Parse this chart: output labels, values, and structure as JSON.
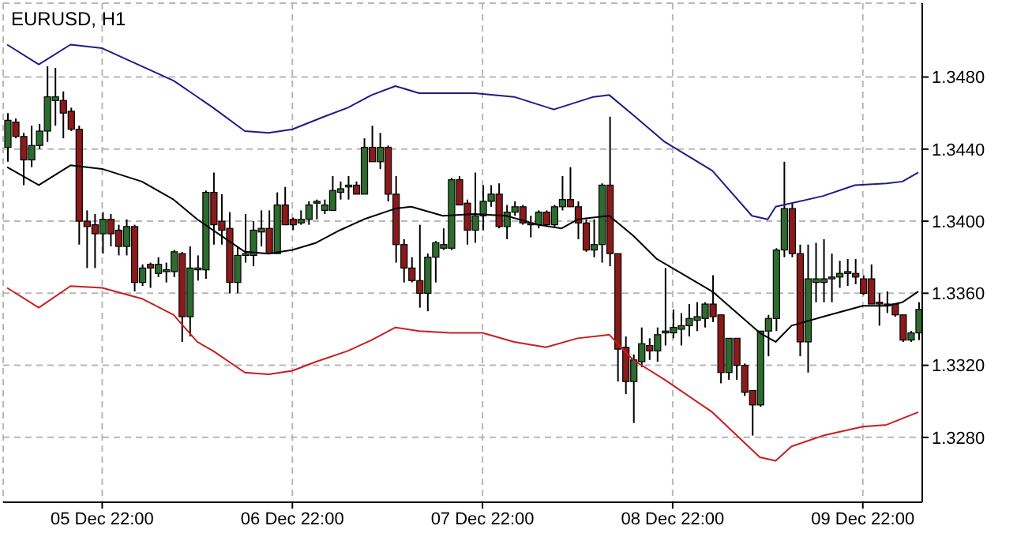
{
  "chart_data": {
    "type": "candlestick",
    "title": "EURUSD, H1",
    "categories": [
      null,
      null,
      null,
      null,
      null,
      null,
      null,
      null,
      null,
      null,
      null,
      null,
      "05 Dec 22:00",
      null,
      null,
      null,
      null,
      null,
      null,
      null,
      null,
      null,
      null,
      null,
      null,
      null,
      null,
      null,
      null,
      null,
      null,
      null,
      null,
      null,
      null,
      null,
      "06 Dec 22:00",
      null,
      null,
      null,
      null,
      null,
      null,
      null,
      null,
      null,
      null,
      null,
      null,
      null,
      null,
      null,
      null,
      null,
      null,
      null,
      null,
      null,
      null,
      null,
      "07 Dec 22:00",
      null,
      null,
      null,
      null,
      null,
      null,
      null,
      null,
      null,
      null,
      null,
      null,
      null,
      null,
      null,
      null,
      null,
      null,
      null,
      null,
      null,
      null,
      null,
      "08 Dec 22:00",
      null,
      null,
      null,
      null,
      null,
      null,
      null,
      null,
      null,
      null,
      null,
      null,
      null,
      null,
      null,
      null,
      null,
      null,
      null,
      null,
      null,
      null,
      null,
      "09 Dec 22:00",
      null,
      null,
      null,
      null,
      null,
      null,
      null
    ],
    "ohlc": [
      [
        1.3441,
        1.346,
        1.3433,
        1.3456
      ],
      [
        1.3455,
        1.3457,
        1.3446,
        1.3447
      ],
      [
        1.3447,
        1.3449,
        1.342,
        1.3434
      ],
      [
        1.3434,
        1.3453,
        1.343,
        1.3442
      ],
      [
        1.3442,
        1.3454,
        1.344,
        1.345
      ],
      [
        1.345,
        1.3486,
        1.3444,
        1.3469
      ],
      [
        1.3467,
        1.3485,
        1.3453,
        1.3469
      ],
      [
        1.3467,
        1.3472,
        1.3446,
        1.346
      ],
      [
        1.3461,
        1.3463,
        1.345,
        1.3451
      ],
      [
        1.3451,
        1.3453,
        1.3387,
        1.34
      ],
      [
        1.34,
        1.3406,
        1.3374,
        1.3397
      ],
      [
        1.3398,
        1.3404,
        1.3374,
        1.3393
      ],
      [
        1.3393,
        1.3405,
        1.3382,
        1.3401
      ],
      [
        1.3401,
        1.3404,
        1.3386,
        1.3393
      ],
      [
        1.3395,
        1.3398,
        1.3381,
        1.3386
      ],
      [
        1.3386,
        1.3401,
        1.3381,
        1.3397
      ],
      [
        1.3397,
        1.3398,
        1.3361,
        1.3366
      ],
      [
        1.3366,
        1.3376,
        1.3364,
        1.3374
      ],
      [
        1.3376,
        1.3377,
        1.3363,
        1.3374
      ],
      [
        1.3371,
        1.338,
        1.3369,
        1.3376
      ],
      [
        1.3372,
        1.3377,
        1.3366,
        1.3373
      ],
      [
        1.3372,
        1.3384,
        1.3369,
        1.3383
      ],
      [
        1.3382,
        1.3383,
        1.3333,
        1.3347
      ],
      [
        1.3347,
        1.3386,
        1.3336,
        1.3374
      ],
      [
        1.3373,
        1.3381,
        1.3367,
        1.3374
      ],
      [
        1.3373,
        1.3417,
        1.3368,
        1.3416
      ],
      [
        1.3416,
        1.3427,
        1.3387,
        1.3398
      ],
      [
        1.34,
        1.3415,
        1.3387,
        1.3395
      ],
      [
        1.3396,
        1.3405,
        1.336,
        1.3366
      ],
      [
        1.3366,
        1.3386,
        1.336,
        1.3381
      ],
      [
        1.3381,
        1.3404,
        1.3377,
        1.3382
      ],
      [
        1.3381,
        1.34,
        1.3375,
        1.3395
      ],
      [
        1.3394,
        1.3406,
        1.3386,
        1.3396
      ],
      [
        1.3396,
        1.3406,
        1.3382,
        1.3382
      ],
      [
        1.3382,
        1.3416,
        1.3382,
        1.3409
      ],
      [
        1.3409,
        1.3419,
        1.3398,
        1.3398
      ],
      [
        1.3401,
        1.3402,
        1.3395,
        1.3398
      ],
      [
        1.3399,
        1.3406,
        1.3398,
        1.3401
      ],
      [
        1.3401,
        1.3411,
        1.3398,
        1.3409
      ],
      [
        1.341,
        1.3412,
        1.3401,
        1.3411
      ],
      [
        1.3406,
        1.3412,
        1.3404,
        1.3409
      ],
      [
        1.3406,
        1.3425,
        1.3406,
        1.3417
      ],
      [
        1.3416,
        1.3422,
        1.3412,
        1.3418
      ],
      [
        1.3419,
        1.3425,
        1.3412,
        1.342
      ],
      [
        1.342,
        1.3422,
        1.3415,
        1.3415
      ],
      [
        1.3415,
        1.3446,
        1.3415,
        1.3441
      ],
      [
        1.3441,
        1.3453,
        1.3433,
        1.3433
      ],
      [
        1.3433,
        1.3449,
        1.3429,
        1.3441
      ],
      [
        1.3441,
        1.3442,
        1.3411,
        1.3415
      ],
      [
        1.3415,
        1.3425,
        1.3377,
        1.3387
      ],
      [
        1.3387,
        1.339,
        1.3366,
        1.3374
      ],
      [
        1.3374,
        1.338,
        1.3366,
        1.3367
      ],
      [
        1.3367,
        1.3398,
        1.3352,
        1.336
      ],
      [
        1.336,
        1.3382,
        1.335,
        1.338
      ],
      [
        1.338,
        1.3389,
        1.3366,
        1.3388
      ],
      [
        1.3385,
        1.3396,
        1.3384,
        1.3387
      ],
      [
        1.3385,
        1.3424,
        1.3384,
        1.3423
      ],
      [
        1.3423,
        1.3425,
        1.3409,
        1.3409
      ],
      [
        1.341,
        1.3412,
        1.3387,
        1.3395
      ],
      [
        1.3395,
        1.3427,
        1.3388,
        1.3403
      ],
      [
        1.3403,
        1.342,
        1.3395,
        1.3411
      ],
      [
        1.3411,
        1.342,
        1.3408,
        1.3415
      ],
      [
        1.3415,
        1.3421,
        1.3396,
        1.3397
      ],
      [
        1.3397,
        1.3409,
        1.339,
        1.3405
      ],
      [
        1.3405,
        1.3411,
        1.3403,
        1.3408
      ],
      [
        1.3408,
        1.3409,
        1.3398,
        1.3399
      ],
      [
        1.3399,
        1.3403,
        1.3391,
        1.3398
      ],
      [
        1.3398,
        1.3406,
        1.3396,
        1.3405
      ],
      [
        1.3405,
        1.3406,
        1.3397,
        1.3398
      ],
      [
        1.3398,
        1.3409,
        1.3397,
        1.3408
      ],
      [
        1.3408,
        1.3425,
        1.3406,
        1.3412
      ],
      [
        1.3412,
        1.343,
        1.3408,
        1.3408
      ],
      [
        1.3408,
        1.3411,
        1.339,
        1.3399
      ],
      [
        1.3399,
        1.3401,
        1.3383,
        1.3384
      ],
      [
        1.3384,
        1.3401,
        1.338,
        1.3387
      ],
      [
        1.3387,
        1.3421,
        1.3377,
        1.342
      ],
      [
        1.342,
        1.3458,
        1.3375,
        1.3382
      ],
      [
        1.3382,
        1.3382,
        1.3311,
        1.3329
      ],
      [
        1.333,
        1.3336,
        1.3304,
        1.3311
      ],
      [
        1.3311,
        1.3326,
        1.3288,
        1.3323
      ],
      [
        1.3322,
        1.3341,
        1.3319,
        1.3332
      ],
      [
        1.3331,
        1.3335,
        1.3323,
        1.3328
      ],
      [
        1.3328,
        1.3341,
        1.3322,
        1.3337
      ],
      [
        1.3338,
        1.3374,
        1.3331,
        1.3339
      ],
      [
        1.3338,
        1.3351,
        1.3335,
        1.3341
      ],
      [
        1.334,
        1.3349,
        1.3331,
        1.3342
      ],
      [
        1.3342,
        1.3354,
        1.3336,
        1.3346
      ],
      [
        1.3345,
        1.3355,
        1.3339,
        1.3347
      ],
      [
        1.3346,
        1.3355,
        1.3341,
        1.3354
      ],
      [
        1.3354,
        1.337,
        1.3344,
        1.3347
      ],
      [
        1.3348,
        1.3348,
        1.331,
        1.3316
      ],
      [
        1.3316,
        1.3335,
        1.3312,
        1.3335
      ],
      [
        1.3335,
        1.3335,
        1.3312,
        1.332
      ],
      [
        1.332,
        1.3321,
        1.3303,
        1.3305
      ],
      [
        1.3306,
        1.3306,
        1.3281,
        1.3298
      ],
      [
        1.3298,
        1.3339,
        1.3297,
        1.3339
      ],
      [
        1.3339,
        1.3348,
        1.3325,
        1.3346
      ],
      [
        1.3346,
        1.3385,
        1.3339,
        1.3384
      ],
      [
        1.3384,
        1.3433,
        1.338,
        1.3407
      ],
      [
        1.3407,
        1.341,
        1.338,
        1.3382
      ],
      [
        1.3382,
        1.3387,
        1.3325,
        1.3333
      ],
      [
        1.3333,
        1.3387,
        1.3316,
        1.3368
      ],
      [
        1.3366,
        1.3388,
        1.3355,
        1.3368
      ],
      [
        1.3366,
        1.339,
        1.3355,
        1.3368
      ],
      [
        1.3368,
        1.3382,
        1.3355,
        1.3369
      ],
      [
        1.3369,
        1.3378,
        1.3363,
        1.3371
      ],
      [
        1.3371,
        1.3379,
        1.3364,
        1.3372
      ],
      [
        1.3371,
        1.3379,
        1.3365,
        1.3369
      ],
      [
        1.3368,
        1.337,
        1.3359,
        1.336
      ],
      [
        1.3368,
        1.3376,
        1.3354,
        1.3354
      ],
      [
        1.3355,
        1.336,
        1.3342,
        1.3354
      ],
      [
        1.3354,
        1.3361,
        1.3349,
        1.3353
      ],
      [
        1.3354,
        1.3354,
        1.3347,
        1.3348
      ],
      [
        1.3348,
        1.3348,
        1.3333,
        1.3334
      ],
      [
        1.3334,
        1.3339,
        1.3333,
        1.3338
      ],
      [
        1.3338,
        1.3355,
        1.3334,
        1.3351
      ]
    ],
    "colors": [
      "#2e6b2e",
      "#8b1a1a",
      "#8b1a1a",
      "#2e6b2e",
      "#2e6b2e",
      "#2e6b2e",
      "#2e6b2e",
      "#8b1a1a",
      "#8b1a1a",
      "#8b1a1a",
      "#8b1a1a",
      "#8b1a1a",
      "#2e6b2e",
      "#8b1a1a",
      "#8b1a1a",
      "#2e6b2e",
      "#8b1a1a",
      "#2e6b2e",
      "#8b1a1a",
      "#2e6b2e",
      "#2e6b2e",
      "#2e6b2e",
      "#8b1a1a",
      "#2e6b2e",
      "#2e6b2e",
      "#2e6b2e",
      "#8b1a1a",
      "#8b1a1a",
      "#8b1a1a",
      "#2e6b2e",
      "#2e6b2e",
      "#2e6b2e",
      "#2e6b2e",
      "#8b1a1a",
      "#2e6b2e",
      "#8b1a1a",
      "#8b1a1a",
      "#2e6b2e",
      "#2e6b2e",
      "#2e6b2e",
      "#2e6b2e",
      "#2e6b2e",
      "#2e6b2e",
      "#2e6b2e",
      "#8b1a1a",
      "#2e6b2e",
      "#8b1a1a",
      "#2e6b2e",
      "#8b1a1a",
      "#8b1a1a",
      "#8b1a1a",
      "#8b1a1a",
      "#8b1a1a",
      "#2e6b2e",
      "#2e6b2e",
      "#2e6b2e",
      "#2e6b2e",
      "#8b1a1a",
      "#8b1a1a",
      "#2e6b2e",
      "#2e6b2e",
      "#2e6b2e",
      "#8b1a1a",
      "#2e6b2e",
      "#2e6b2e",
      "#8b1a1a",
      "#8b1a1a",
      "#2e6b2e",
      "#8b1a1a",
      "#2e6b2e",
      "#2e6b2e",
      "#8b1a1a",
      "#8b1a1a",
      "#8b1a1a",
      "#2e6b2e",
      "#2e6b2e",
      "#8b1a1a",
      "#8b1a1a",
      "#8b1a1a",
      "#2e6b2e",
      "#2e6b2e",
      "#8b1a1a",
      "#2e6b2e",
      "#2e6b2e",
      "#2e6b2e",
      "#2e6b2e",
      "#2e6b2e",
      "#2e6b2e",
      "#2e6b2e",
      "#8b1a1a",
      "#8b1a1a",
      "#2e6b2e",
      "#8b1a1a",
      "#8b1a1a",
      "#8b1a1a",
      "#2e6b2e",
      "#2e6b2e",
      "#2e6b2e",
      "#2e6b2e",
      "#8b1a1a",
      "#8b1a1a",
      "#2e6b2e",
      "#2e6b2e",
      "#2e6b2e",
      "#2e6b2e",
      "#2e6b2e",
      "#2e6b2e",
      "#8b1a1a",
      "#8b1a1a",
      "#8b1a1a",
      "#8b1a1a",
      "#8b1a1a",
      "#8b1a1a",
      "#8b1a1a",
      "#2e6b2e",
      "#2e6b2e"
    ],
    "series": [
      {
        "type": "line",
        "color": "#1c1c8a",
        "values": [
          1.3498,
          null,
          null,
          null,
          1.3487,
          null,
          null,
          null,
          1.3498,
          null,
          null,
          null,
          1.3496,
          null,
          null,
          null,
          1.3488,
          null,
          null,
          null,
          null,
          1.3478,
          null,
          1.3472,
          null,
          null,
          1.3463,
          null,
          null,
          null,
          1.345,
          null,
          null,
          1.3449,
          null,
          null,
          1.3451,
          null,
          null,
          null,
          1.3458,
          null,
          null,
          1.3463,
          null,
          null,
          1.347,
          null,
          null,
          1.3475,
          null,
          null,
          1.3471,
          null,
          null,
          null,
          null,
          null,
          null,
          1.3471,
          null,
          null,
          null,
          null,
          1.3469,
          null,
          null,
          null,
          null,
          1.3462,
          null,
          null,
          null,
          null,
          1.3469,
          null,
          1.347,
          null,
          null,
          1.3459,
          null,
          null,
          null,
          1.3444,
          null,
          null,
          null,
          null,
          null,
          1.3428,
          null,
          null,
          null,
          null,
          1.3403,
          null,
          1.3401,
          1.3408,
          null,
          null,
          null,
          null,
          null,
          1.3414,
          null,
          null,
          null,
          1.342,
          null,
          null,
          null,
          1.3421,
          null,
          1.3422,
          null,
          1.3427
        ]
      },
      {
        "type": "line",
        "color": "#000000",
        "values": [
          1.343,
          null,
          null,
          null,
          1.342,
          null,
          null,
          null,
          1.3431,
          null,
          null,
          null,
          1.3429,
          null,
          null,
          null,
          null,
          1.3422,
          null,
          null,
          null,
          1.3412,
          null,
          null,
          1.3401,
          null,
          null,
          1.3392,
          null,
          null,
          1.3383,
          null,
          null,
          1.3382,
          null,
          null,
          1.3384,
          null,
          null,
          1.3388,
          null,
          null,
          1.3395,
          null,
          null,
          1.3401,
          null,
          null,
          null,
          1.3407,
          null,
          1.3408,
          null,
          null,
          null,
          1.3403,
          null,
          null,
          null,
          1.3404,
          null,
          null,
          null,
          1.3403,
          null,
          null,
          null,
          1.3398,
          null,
          null,
          1.3396,
          null,
          1.3401,
          null,
          null,
          null,
          1.3403,
          null,
          null,
          1.3392,
          null,
          null,
          1.3379,
          null,
          null,
          null,
          null,
          null,
          null,
          1.3361,
          null,
          null,
          null,
          null,
          null,
          1.3338,
          null,
          1.3333,
          null,
          1.3342,
          null,
          null,
          null,
          1.3347,
          null,
          null,
          null,
          null,
          1.3353,
          null,
          null,
          1.3353,
          null,
          1.3355,
          null,
          1.3361
        ]
      },
      {
        "type": "line",
        "color": "#c81e1e",
        "values": [
          1.3363,
          null,
          null,
          null,
          1.3352,
          null,
          null,
          null,
          1.3364,
          null,
          null,
          null,
          1.3363,
          null,
          null,
          null,
          null,
          1.3357,
          null,
          null,
          null,
          1.3348,
          null,
          null,
          1.3333,
          null,
          1.3328,
          null,
          null,
          null,
          1.3316,
          null,
          null,
          1.3315,
          null,
          null,
          1.3317,
          null,
          null,
          1.3322,
          null,
          null,
          null,
          1.3328,
          null,
          null,
          1.3334,
          null,
          null,
          1.3341,
          null,
          null,
          1.3339,
          null,
          null,
          null,
          1.3338,
          null,
          null,
          null,
          1.3338,
          null,
          null,
          null,
          1.3333,
          null,
          null,
          null,
          1.333,
          null,
          null,
          null,
          1.3335,
          null,
          null,
          null,
          1.3337,
          null,
          null,
          1.3323,
          null,
          null,
          null,
          1.3312,
          null,
          null,
          null,
          null,
          null,
          1.3294,
          null,
          null,
          null,
          null,
          null,
          1.3269,
          null,
          1.3267,
          null,
          1.3275,
          null,
          null,
          null,
          1.3281,
          null,
          null,
          null,
          null,
          1.3286,
          null,
          null,
          1.3287,
          null,
          null,
          null,
          1.3294
        ]
      }
    ],
    "ylim": [
      1.3244,
      1.3521
    ],
    "yticks": [
      {
        "value": 1.328,
        "label": "1.3280"
      },
      {
        "value": 1.332,
        "label": "1.3320"
      },
      {
        "value": 1.336,
        "label": "1.3360"
      },
      {
        "value": 1.34,
        "label": "1.3400"
      },
      {
        "value": 1.344,
        "label": "1.3440"
      },
      {
        "value": 1.348,
        "label": "1.3480"
      }
    ],
    "grid": true
  }
}
